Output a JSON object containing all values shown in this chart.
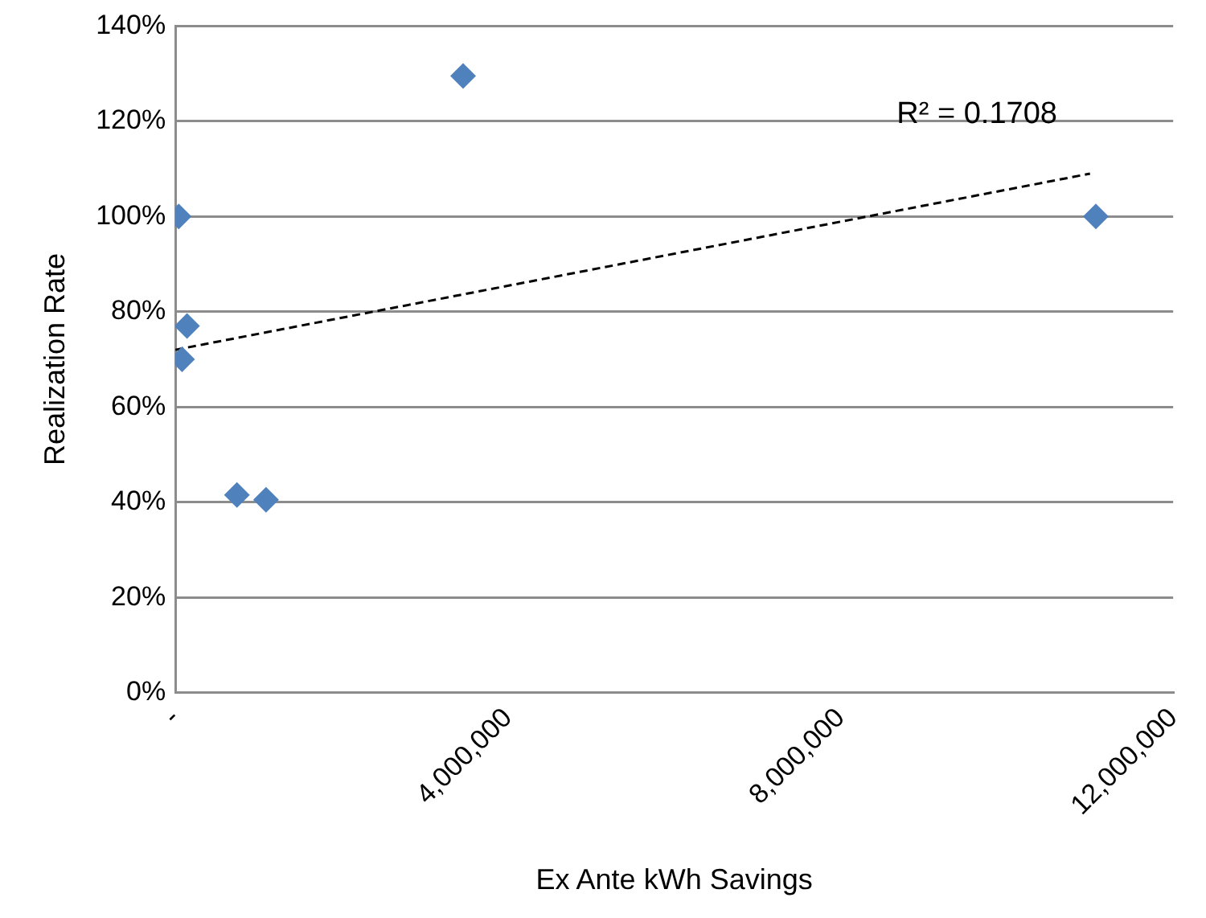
{
  "chart_data": {
    "type": "scatter",
    "xlabel": "Ex Ante kWh Savings",
    "ylabel": "Realization Rate",
    "series": [
      {
        "color": "#4f81bd",
        "marker": "diamond",
        "x": [
          40000,
          80000,
          140000,
          740000,
          1090000,
          3460000,
          11070000
        ],
        "values": [
          100,
          70,
          77,
          41.5,
          40.5,
          129.5,
          100
        ]
      },
      {
        "type": "line",
        "color": "#000000",
        "marker": "none",
        "line_style": "dashed",
        "x": [
          0,
          11000000
        ],
        "values": [
          72,
          109
        ]
      }
    ],
    "xlim": [
      0,
      12000000
    ],
    "xticks": [
      {
        "value": 0,
        "label": "-"
      },
      {
        "value": 4000000,
        "label": "4,000,000"
      },
      {
        "value": 8000000,
        "label": "8,000,000"
      },
      {
        "value": 12000000,
        "label": "12,000,000"
      }
    ],
    "ylim": [
      0,
      140
    ],
    "yticks": [
      {
        "value": 0,
        "label": "0%"
      },
      {
        "value": 20,
        "label": "20%"
      },
      {
        "value": 40,
        "label": "40%"
      },
      {
        "value": 60,
        "label": "60%"
      },
      {
        "value": 80,
        "label": "80%"
      },
      {
        "value": 100,
        "label": "100%"
      },
      {
        "value": 120,
        "label": "120%"
      },
      {
        "value": 140,
        "label": "140%"
      }
    ],
    "grid": "y",
    "legend": false,
    "annotations": [
      "R² = 0.1708"
    ]
  }
}
